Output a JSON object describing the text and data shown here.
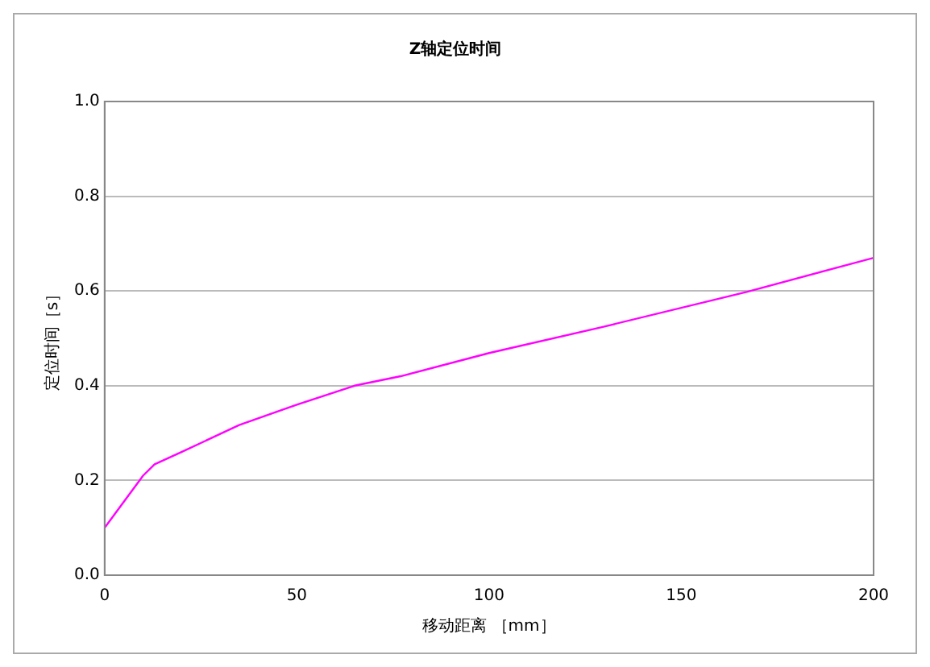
{
  "chart_data": {
    "type": "line",
    "title": "Z轴定位时间",
    "xlabel": "移动距离 ［mm］",
    "ylabel": "定位时间［s］",
    "series": [
      {
        "color": "#ff00ff",
        "x": [
          0,
          10,
          13,
          20,
          35,
          50,
          65,
          77,
          100,
          130,
          167,
          200
        ],
        "values": [
          0.1,
          0.21,
          0.234,
          0.26,
          0.317,
          0.36,
          0.4,
          0.42,
          0.469,
          0.525,
          0.598,
          0.67
        ]
      }
    ],
    "xlim": [
      0,
      200
    ],
    "xticks": [
      0,
      50,
      100,
      150,
      200
    ],
    "ylim": [
      0,
      1
    ],
    "yticks": [
      {
        "value": 0,
        "label": "0.0"
      },
      {
        "value": 0.2,
        "label": "0.2"
      },
      {
        "value": 0.4,
        "label": "0.4"
      },
      {
        "value": 0.6,
        "label": "0.6"
      },
      {
        "value": 0.8,
        "label": "0.8"
      },
      {
        "value": 1,
        "label": "1.0"
      }
    ],
    "grid": "y",
    "marker": "none",
    "line_style": "solid"
  }
}
